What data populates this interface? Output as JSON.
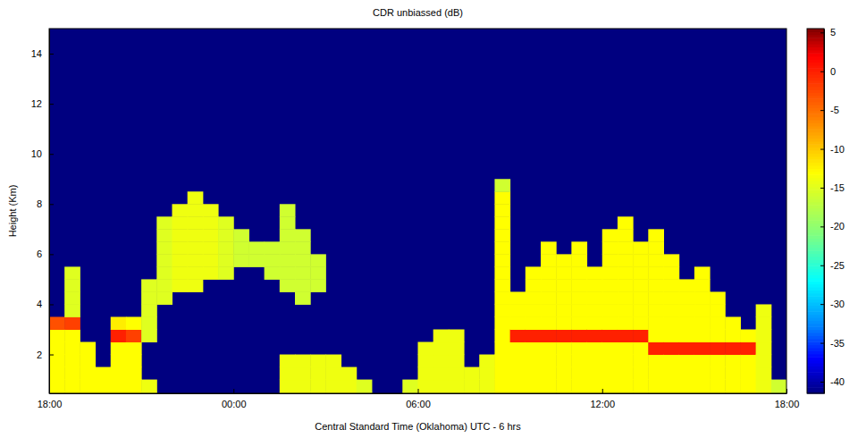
{
  "chart_data": {
    "type": "heatmap",
    "title": "CDR unbiassed (dB)",
    "x_label": "Central Standard Time (Oklahoma)  UTC - 6 hrs",
    "y_label": "Height (Km)",
    "xlim": [
      0,
      24
    ],
    "xticks": [
      {
        "value": 0,
        "label": "18:00"
      },
      {
        "value": 6,
        "label": "00:00"
      },
      {
        "value": 12,
        "label": "06:00"
      },
      {
        "value": 18,
        "label": "12:00"
      },
      {
        "value": 24,
        "label": "18:00"
      }
    ],
    "ylim": [
      0.45,
      15
    ],
    "yticks": [
      2,
      4,
      6,
      8,
      10,
      12,
      14
    ],
    "colorbar": {
      "range": [
        -41.5,
        5.5
      ],
      "ticks": [
        5,
        0,
        -5,
        -10,
        -15,
        -20,
        -25,
        -30,
        -35,
        -40
      ]
    },
    "x": [
      0.25,
      0.75,
      1.25,
      1.75,
      2.25,
      2.75,
      3.25,
      3.75,
      4.25,
      4.75,
      5.25,
      5.75,
      6.25,
      6.75,
      7.25,
      7.75,
      8.25,
      8.75,
      9.25,
      9.75,
      10.25,
      10.75,
      11.25,
      11.75,
      12.25,
      12.75,
      13.25,
      13.75,
      14.25,
      14.75,
      15.25,
      15.75,
      16.25,
      16.75,
      17.25,
      17.75,
      18.25,
      18.75,
      19.25,
      19.75,
      20.25,
      20.75,
      21.25,
      21.75,
      22.25,
      22.75,
      23.25,
      23.75
    ],
    "y": [
      0.25,
      0.75,
      1.25,
      1.75,
      2.25,
      2.75,
      3.25,
      3.75,
      4.25,
      4.75,
      5.25,
      5.75,
      6.25,
      6.75,
      7.25,
      7.75,
      8.25,
      8.75
    ],
    "values": [
      [
        -13,
        -13,
        -13,
        -13,
        -13,
        -13,
        -3,
        null,
        null,
        null,
        null,
        null,
        null,
        null,
        null,
        null,
        null,
        null
      ],
      [
        -13,
        -13,
        -13,
        -13,
        -13,
        -13,
        -2,
        -15,
        -15,
        -15,
        -15,
        null,
        null,
        null,
        null,
        null,
        null,
        null
      ],
      [
        -13,
        -13,
        -13,
        -13,
        -13,
        null,
        null,
        null,
        null,
        null,
        null,
        null,
        null,
        null,
        null,
        null,
        null,
        null
      ],
      [
        -13,
        -13,
        -13,
        null,
        null,
        null,
        null,
        null,
        null,
        null,
        null,
        null,
        null,
        null,
        null,
        null,
        null,
        null
      ],
      [
        -13,
        -13,
        -13,
        -13,
        -13,
        0,
        -12,
        null,
        null,
        null,
        null,
        null,
        null,
        null,
        null,
        null,
        null,
        null
      ],
      [
        -13,
        -13,
        -13,
        -13,
        -13,
        -2,
        -13,
        null,
        null,
        null,
        null,
        null,
        null,
        null,
        null,
        null,
        null,
        null
      ],
      [
        -14,
        -14,
        null,
        null,
        null,
        -15,
        -15,
        -15,
        -15,
        -15,
        null,
        null,
        null,
        null,
        null,
        null,
        null,
        null
      ],
      [
        null,
        null,
        null,
        null,
        null,
        null,
        null,
        null,
        -15,
        -15,
        -15,
        -15,
        -15,
        -15,
        -15,
        null,
        null,
        null
      ],
      [
        null,
        null,
        null,
        null,
        null,
        null,
        null,
        null,
        null,
        -14,
        -14,
        -14,
        -14,
        -14,
        -14,
        -14,
        null,
        null
      ],
      [
        null,
        null,
        null,
        null,
        null,
        null,
        null,
        null,
        null,
        -14,
        -14,
        -14,
        -14,
        -14,
        -14,
        -14,
        -14,
        null
      ],
      [
        null,
        null,
        null,
        null,
        null,
        null,
        null,
        null,
        null,
        null,
        -14,
        -14,
        -14,
        -14,
        -14,
        -14,
        null,
        null
      ],
      [
        null,
        null,
        null,
        null,
        null,
        null,
        null,
        null,
        null,
        null,
        -15,
        -15,
        -15,
        -15,
        -15,
        null,
        null,
        null
      ],
      [
        null,
        null,
        null,
        null,
        null,
        null,
        null,
        null,
        null,
        null,
        null,
        -16,
        -16,
        -16,
        null,
        null,
        null,
        null
      ],
      [
        null,
        null,
        null,
        null,
        null,
        null,
        null,
        null,
        null,
        null,
        null,
        -16,
        -16,
        null,
        null,
        null,
        null,
        null
      ],
      [
        null,
        null,
        null,
        null,
        null,
        null,
        null,
        null,
        null,
        null,
        -16,
        -16,
        -16,
        null,
        null,
        null,
        null,
        null
      ],
      [
        -14,
        -14,
        -14,
        -14,
        null,
        null,
        null,
        null,
        null,
        -16,
        -16,
        -16,
        -16,
        -16,
        -16,
        -16,
        null,
        null
      ],
      [
        -14,
        -14,
        -14,
        -14,
        null,
        null,
        null,
        null,
        -16,
        -16,
        -16,
        -16,
        -16,
        -16,
        null,
        null,
        null,
        null
      ],
      [
        -14,
        -14,
        -14,
        -14,
        null,
        null,
        null,
        null,
        null,
        -16,
        -16,
        -16,
        null,
        null,
        null,
        null,
        null,
        null
      ],
      [
        -14,
        -14,
        -14,
        -14,
        null,
        null,
        null,
        null,
        null,
        null,
        null,
        null,
        null,
        null,
        null,
        null,
        null,
        null
      ],
      [
        -14,
        -14,
        -14,
        null,
        null,
        null,
        null,
        null,
        null,
        null,
        null,
        null,
        null,
        null,
        null,
        null,
        null,
        null
      ],
      [
        -15,
        -15,
        null,
        null,
        null,
        null,
        null,
        null,
        null,
        null,
        null,
        null,
        null,
        null,
        null,
        null,
        null,
        null
      ],
      [
        null,
        null,
        null,
        null,
        null,
        null,
        null,
        null,
        null,
        null,
        null,
        null,
        null,
        null,
        null,
        null,
        null,
        null
      ],
      [
        null,
        null,
        null,
        null,
        null,
        null,
        null,
        null,
        null,
        null,
        null,
        null,
        null,
        null,
        null,
        null,
        null,
        null
      ],
      [
        -15,
        -15,
        null,
        null,
        null,
        null,
        null,
        null,
        null,
        null,
        null,
        null,
        null,
        null,
        null,
        null,
        null,
        null
      ],
      [
        -14,
        -14,
        -14,
        -14,
        -14,
        null,
        null,
        null,
        null,
        null,
        null,
        null,
        null,
        null,
        null,
        null,
        null,
        null
      ],
      [
        -14,
        -14,
        -14,
        -14,
        -14,
        -14,
        null,
        null,
        null,
        null,
        null,
        null,
        null,
        null,
        null,
        null,
        null,
        null
      ],
      [
        -14,
        -14,
        -14,
        -14,
        -14,
        -14,
        null,
        null,
        null,
        null,
        null,
        null,
        null,
        null,
        null,
        null,
        null,
        null
      ],
      [
        -14,
        -14,
        -14,
        null,
        null,
        null,
        null,
        null,
        null,
        null,
        null,
        null,
        null,
        null,
        null,
        null,
        null,
        null
      ],
      [
        -14,
        -14,
        -14,
        -14,
        null,
        null,
        null,
        null,
        null,
        null,
        null,
        null,
        null,
        null,
        null,
        null,
        null,
        null
      ],
      [
        -13,
        -13,
        -13,
        -13,
        -13,
        -13,
        -13,
        -13,
        -13,
        -13,
        -13,
        -13,
        -13,
        -13,
        -13,
        -13,
        -13,
        -16
      ],
      [
        -13,
        -13,
        -13,
        -13,
        -13,
        0,
        -13,
        -13,
        -13,
        null,
        null,
        null,
        null,
        null,
        null,
        null,
        null,
        null
      ],
      [
        -13,
        -13,
        -13,
        -13,
        -13,
        0,
        -13,
        -13,
        -13,
        -13,
        -13,
        null,
        null,
        null,
        null,
        null,
        null,
        null
      ],
      [
        -13,
        -13,
        -13,
        -13,
        -13,
        0,
        -13,
        -13,
        -13,
        -13,
        -13,
        -13,
        -13,
        null,
        null,
        null,
        null,
        null
      ],
      [
        -13,
        -13,
        -13,
        -13,
        -13,
        0,
        -13,
        -13,
        -13,
        -13,
        -13,
        -13,
        null,
        null,
        null,
        null,
        null,
        null
      ],
      [
        -13,
        -13,
        -13,
        -13,
        -13,
        0,
        -13,
        -13,
        -13,
        -13,
        -13,
        -13,
        -13,
        null,
        null,
        null,
        null,
        null
      ],
      [
        -13,
        -13,
        -13,
        -13,
        -13,
        0,
        -13,
        -13,
        -13,
        -13,
        -13,
        null,
        null,
        null,
        null,
        null,
        null,
        null
      ],
      [
        -13,
        -13,
        -13,
        -13,
        -13,
        0,
        -13,
        -13,
        -13,
        -13,
        -13,
        -13,
        -13,
        -13,
        null,
        null,
        null,
        null
      ],
      [
        -13,
        -13,
        -13,
        -13,
        -13,
        0,
        -13,
        -13,
        -13,
        -13,
        -13,
        -13,
        -13,
        -13,
        -13,
        null,
        null,
        null
      ],
      [
        -13,
        -13,
        -13,
        -13,
        -13,
        0,
        -13,
        -13,
        -13,
        -13,
        -13,
        -13,
        -13,
        null,
        null,
        null,
        null,
        null
      ],
      [
        -13,
        -13,
        -13,
        -13,
        0,
        -13,
        -13,
        -13,
        -13,
        -13,
        -13,
        -13,
        -13,
        -13,
        null,
        null,
        null,
        null
      ],
      [
        -13,
        -13,
        -13,
        -13,
        0,
        -13,
        -13,
        -13,
        -13,
        -13,
        -13,
        -13,
        null,
        null,
        null,
        null,
        null,
        null
      ],
      [
        -13,
        -13,
        -13,
        -13,
        0,
        -13,
        -13,
        -13,
        -13,
        -13,
        null,
        null,
        null,
        null,
        null,
        null,
        null,
        null
      ],
      [
        -13,
        -13,
        -13,
        -13,
        0,
        -13,
        -13,
        -13,
        -13,
        -13,
        -13,
        null,
        null,
        null,
        null,
        null,
        null,
        null
      ],
      [
        -13,
        -13,
        -13,
        -13,
        0,
        -13,
        -13,
        -13,
        -13,
        null,
        null,
        null,
        null,
        null,
        null,
        null,
        null,
        null
      ],
      [
        -13,
        -13,
        -13,
        -13,
        0,
        -13,
        -13,
        null,
        null,
        null,
        null,
        null,
        null,
        null,
        null,
        null,
        null,
        null
      ],
      [
        -13,
        -13,
        -13,
        -13,
        0,
        -13,
        null,
        null,
        null,
        null,
        null,
        null,
        null,
        null,
        null,
        null,
        null,
        null
      ],
      [
        -14,
        -14,
        -14,
        -14,
        -14,
        -14,
        -14,
        -14,
        null,
        null,
        null,
        null,
        null,
        null,
        null,
        null,
        null,
        null
      ],
      [
        -16,
        -16,
        null,
        null,
        null,
        null,
        null,
        null,
        null,
        null,
        null,
        null,
        null,
        null,
        null,
        null,
        null,
        null
      ]
    ]
  }
}
